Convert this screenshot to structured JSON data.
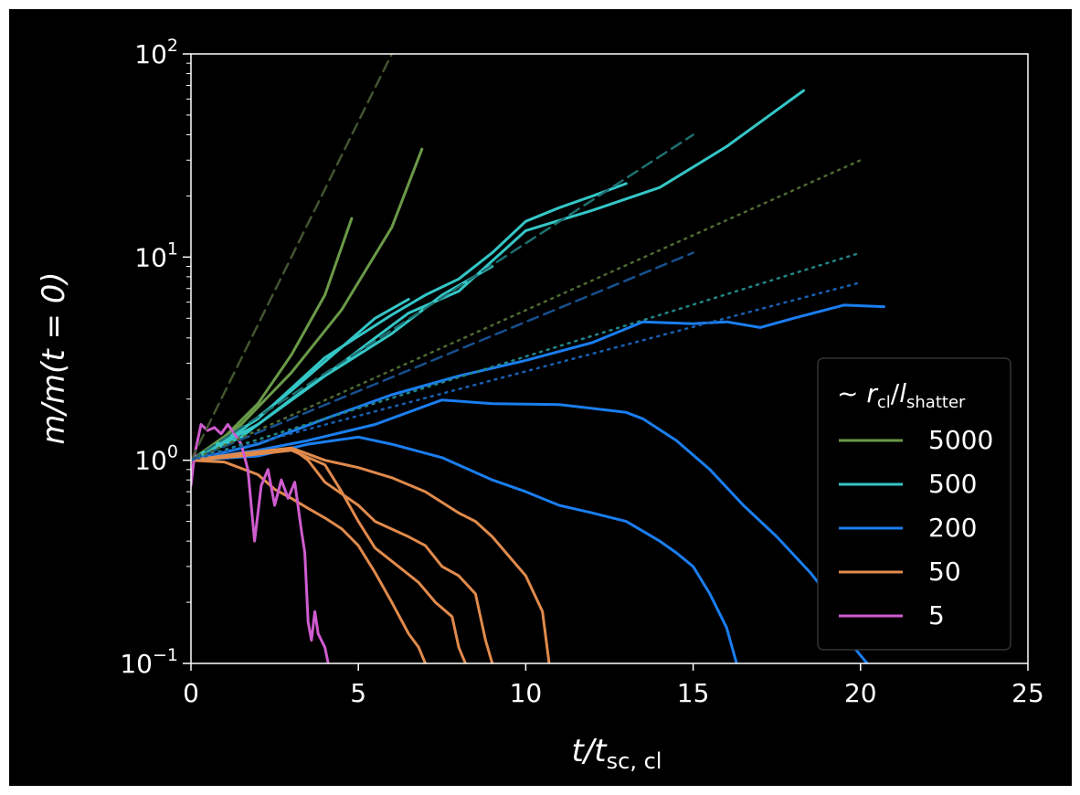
{
  "chart_data": {
    "type": "line",
    "xlabel": "t/t",
    "xlabel_sub": "sc, cl",
    "ylabel": "m/m(t = 0)",
    "xlim": [
      0,
      25
    ],
    "ylim": [
      0.1,
      100
    ],
    "yscale": "log",
    "x_ticks": [
      0,
      5,
      10,
      15,
      20,
      25
    ],
    "y_ticks": [
      {
        "value": 0.1,
        "base": "10",
        "exp": "−1"
      },
      {
        "value": 1,
        "base": "10",
        "exp": "0"
      },
      {
        "value": 10,
        "base": "10",
        "exp": "1"
      },
      {
        "value": 100,
        "base": "10",
        "exp": "2"
      }
    ],
    "background": "#000000",
    "legend": {
      "position": "lower-right",
      "title_prefix": "~ ",
      "title_r": "r",
      "title_r_sub": "cl",
      "title_slash": "/",
      "title_l": "l",
      "title_l_sub": "shatter",
      "entries": [
        {
          "label": "5000",
          "color": "#6a9a48"
        },
        {
          "label": "500",
          "color": "#35c6c6"
        },
        {
          "label": "200",
          "color": "#1a7ef0"
        },
        {
          "label": "50",
          "color": "#e08a4c"
        },
        {
          "label": "5",
          "color": "#cf5ccf"
        }
      ]
    },
    "series": [
      {
        "group": "5000",
        "color": "#6a9a48",
        "points": [
          [
            0,
            1
          ],
          [
            1,
            1.3
          ],
          [
            2,
            1.9
          ],
          [
            3,
            3.3
          ],
          [
            4,
            6.5
          ],
          [
            4.8,
            15.5
          ]
        ]
      },
      {
        "group": "5000",
        "color": "#6a9a48",
        "points": [
          [
            0,
            1
          ],
          [
            1.5,
            1.5
          ],
          [
            3,
            2.7
          ],
          [
            4.5,
            5.5
          ],
          [
            6,
            14
          ],
          [
            6.9,
            34
          ]
        ]
      },
      {
        "group": "500",
        "color": "#35c6c6",
        "points": [
          [
            0,
            1
          ],
          [
            1.5,
            1.4
          ],
          [
            3,
            2.2
          ],
          [
            4.5,
            3.6
          ],
          [
            5.5,
            5
          ],
          [
            6.5,
            6.2
          ]
        ]
      },
      {
        "group": "500",
        "color": "#35c6c6",
        "points": [
          [
            0,
            1
          ],
          [
            2,
            1.6
          ],
          [
            4,
            3.2
          ],
          [
            6,
            5.2
          ],
          [
            7,
            6.5
          ],
          [
            8,
            7.8
          ],
          [
            9,
            10.5
          ],
          [
            10,
            15
          ],
          [
            11,
            17.5
          ],
          [
            12,
            20
          ],
          [
            13,
            23
          ]
        ]
      },
      {
        "group": "500",
        "color": "#35c6c6",
        "points": [
          [
            0,
            1
          ],
          [
            1.5,
            1.3
          ],
          [
            3,
            2
          ],
          [
            4.5,
            3
          ],
          [
            5.5,
            4
          ],
          [
            6.5,
            5.3
          ],
          [
            8,
            6.8
          ],
          [
            10,
            13.5
          ],
          [
            12,
            17
          ],
          [
            14,
            22
          ],
          [
            16,
            35
          ],
          [
            18.3,
            66
          ]
        ]
      },
      {
        "group": "500",
        "color": "#35c6c6",
        "points": [
          [
            0,
            1
          ],
          [
            2,
            1.5
          ],
          [
            4,
            2.6
          ],
          [
            6,
            4.2
          ],
          [
            7.5,
            6.5
          ],
          [
            9,
            9
          ]
        ]
      },
      {
        "group": "200",
        "color": "#1a7ef0",
        "points": [
          [
            0,
            1
          ],
          [
            2,
            1.2
          ],
          [
            4,
            1.6
          ],
          [
            6,
            2.1
          ],
          [
            8,
            2.6
          ],
          [
            10,
            3.1
          ],
          [
            12,
            3.8
          ],
          [
            13.5,
            4.8
          ],
          [
            15,
            4.7
          ],
          [
            16,
            4.8
          ],
          [
            17,
            4.5
          ],
          [
            18,
            5
          ],
          [
            19.5,
            5.8
          ],
          [
            20.7,
            5.7
          ]
        ]
      },
      {
        "group": "200",
        "color": "#1a7ef0",
        "points": [
          [
            0,
            1
          ],
          [
            2,
            1.12
          ],
          [
            3.5,
            1.25
          ],
          [
            5.5,
            1.5
          ],
          [
            7,
            1.85
          ],
          [
            7.5,
            1.98
          ],
          [
            9,
            1.9
          ],
          [
            11,
            1.88
          ],
          [
            13,
            1.72
          ],
          [
            13.5,
            1.6
          ],
          [
            14.5,
            1.25
          ],
          [
            15.5,
            0.9
          ],
          [
            16.5,
            0.6
          ],
          [
            17.5,
            0.42
          ],
          [
            18.5,
            0.28
          ],
          [
            19,
            0.22
          ],
          [
            19.8,
            0.12
          ],
          [
            20.2,
            0.1
          ]
        ]
      },
      {
        "group": "200",
        "color": "#1a7ef0",
        "points": [
          [
            0,
            1
          ],
          [
            2,
            1.05
          ],
          [
            3.5,
            1.2
          ],
          [
            5,
            1.3
          ],
          [
            6,
            1.2
          ],
          [
            7.5,
            1.03
          ],
          [
            9,
            0.8
          ],
          [
            10,
            0.7
          ],
          [
            11,
            0.6
          ],
          [
            12,
            0.55
          ],
          [
            13,
            0.5
          ],
          [
            14,
            0.4
          ],
          [
            14.5,
            0.35
          ],
          [
            15,
            0.3
          ],
          [
            15.5,
            0.22
          ],
          [
            16,
            0.15
          ],
          [
            16.3,
            0.1
          ]
        ]
      },
      {
        "group": "50",
        "color": "#e08a4c",
        "points": [
          [
            0,
            1
          ],
          [
            1.5,
            1.08
          ],
          [
            3,
            1.15
          ],
          [
            4,
            1.0
          ],
          [
            5,
            0.92
          ],
          [
            6,
            0.82
          ],
          [
            7,
            0.7
          ],
          [
            8,
            0.55
          ],
          [
            8.5,
            0.5
          ],
          [
            9,
            0.42
          ],
          [
            10,
            0.27
          ],
          [
            10.5,
            0.18
          ],
          [
            10.7,
            0.1
          ]
        ]
      },
      {
        "group": "50",
        "color": "#e08a4c",
        "points": [
          [
            0,
            1
          ],
          [
            1.5,
            1.05
          ],
          [
            3,
            1.15
          ],
          [
            3.5,
            1.0
          ],
          [
            4,
            0.78
          ],
          [
            5,
            0.6
          ],
          [
            5.5,
            0.5
          ],
          [
            6.5,
            0.42
          ],
          [
            7,
            0.38
          ],
          [
            7.5,
            0.3
          ],
          [
            8,
            0.27
          ],
          [
            8.5,
            0.22
          ],
          [
            8.8,
            0.13
          ],
          [
            9,
            0.1
          ]
        ]
      },
      {
        "group": "50",
        "color": "#e08a4c",
        "points": [
          [
            0,
            1
          ],
          [
            1.5,
            1.05
          ],
          [
            3,
            1.12
          ],
          [
            4,
            0.95
          ],
          [
            4.5,
            0.7
          ],
          [
            5,
            0.5
          ],
          [
            5.5,
            0.37
          ],
          [
            6.2,
            0.3
          ],
          [
            6.8,
            0.25
          ],
          [
            7.3,
            0.2
          ],
          [
            7.8,
            0.17
          ],
          [
            8,
            0.12
          ],
          [
            8.2,
            0.1
          ]
        ]
      },
      {
        "group": "50",
        "color": "#e08a4c",
        "points": [
          [
            0,
            1
          ],
          [
            1,
            0.98
          ],
          [
            2,
            0.85
          ],
          [
            2.5,
            0.72
          ],
          [
            3,
            0.65
          ],
          [
            3.5,
            0.58
          ],
          [
            4,
            0.52
          ],
          [
            4.5,
            0.46
          ],
          [
            5,
            0.38
          ],
          [
            5.5,
            0.28
          ],
          [
            6,
            0.2
          ],
          [
            6.5,
            0.14
          ],
          [
            6.8,
            0.12
          ],
          [
            7,
            0.1
          ]
        ]
      },
      {
        "group": "5",
        "color": "#cf5ccf",
        "points": [
          [
            0,
            0.75
          ],
          [
            0.1,
            1.05
          ],
          [
            0.3,
            1.5
          ],
          [
            0.5,
            1.4
          ],
          [
            0.7,
            1.45
          ],
          [
            0.9,
            1.35
          ],
          [
            1.1,
            1.5
          ],
          [
            1.3,
            1.35
          ],
          [
            1.5,
            1.2
          ],
          [
            1.7,
            0.9
          ],
          [
            1.9,
            0.4
          ],
          [
            2.1,
            0.75
          ],
          [
            2.3,
            0.9
          ],
          [
            2.5,
            0.6
          ],
          [
            2.7,
            0.8
          ],
          [
            2.9,
            0.65
          ],
          [
            3.1,
            0.78
          ],
          [
            3.3,
            0.45
          ],
          [
            3.4,
            0.35
          ],
          [
            3.5,
            0.16
          ],
          [
            3.6,
            0.13
          ],
          [
            3.7,
            0.18
          ],
          [
            3.8,
            0.14
          ],
          [
            4.0,
            0.12
          ],
          [
            4.1,
            0.1
          ]
        ]
      },
      {
        "group": "fit-5000",
        "style": "dashed",
        "color": "#41552e",
        "points": [
          [
            0,
            1
          ],
          [
            6,
            100
          ]
        ]
      },
      {
        "group": "fit-500",
        "style": "dashed",
        "color": "#1f6f70",
        "points": [
          [
            0,
            1
          ],
          [
            15,
            40
          ]
        ]
      },
      {
        "group": "fit-200",
        "style": "dashed",
        "color": "#17508f",
        "points": [
          [
            0,
            1
          ],
          [
            15,
            10.5
          ]
        ]
      },
      {
        "group": "fit-5000",
        "style": "dotted",
        "color": "#4e6a32",
        "points": [
          [
            0,
            1
          ],
          [
            20,
            30
          ]
        ]
      },
      {
        "group": "fit-500",
        "style": "dotted",
        "color": "#238586",
        "points": [
          [
            0,
            1
          ],
          [
            20,
            10.5
          ]
        ]
      },
      {
        "group": "fit-200",
        "style": "dotted",
        "color": "#1a5fb0",
        "points": [
          [
            0,
            1
          ],
          [
            20,
            7.5
          ]
        ]
      }
    ]
  }
}
